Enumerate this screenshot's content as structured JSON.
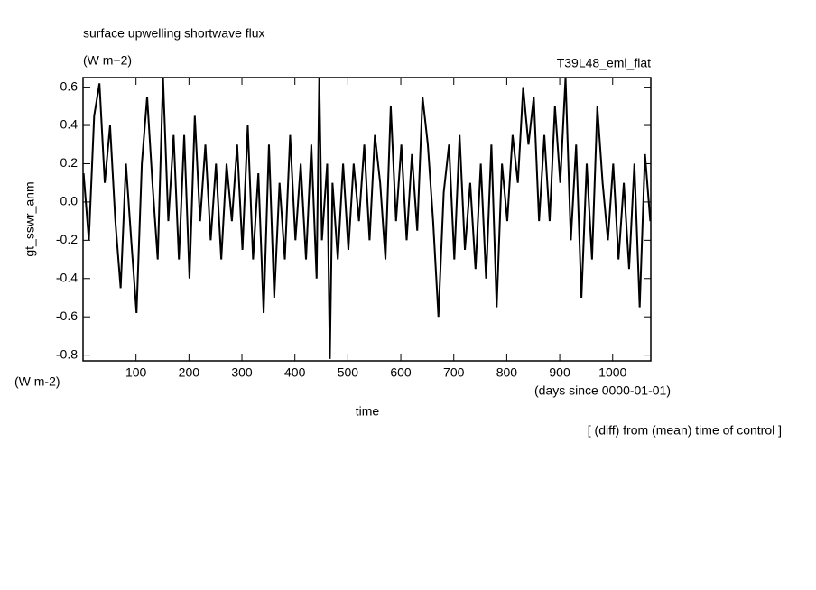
{
  "chart_data": {
    "type": "line",
    "title": "surface upwelling shortwave flux",
    "units": "(W m−2)",
    "run_label": "T39L48_eml_flat",
    "ylabel": "gt_sswr_anm",
    "y_units": "(W m-2)",
    "xlabel": "time",
    "x_units": "(days since 0000-01-01)",
    "note": "[ (diff) from (mean) time of control ]",
    "xlim": [
      0,
      1072
    ],
    "ylim": [
      -0.83,
      0.65
    ],
    "xticks": [
      100,
      200,
      300,
      400,
      500,
      600,
      700,
      800,
      900,
      1000
    ],
    "yticks": [
      0.6,
      0.4,
      0.2,
      {
        "value": 0,
        "label": "0.0"
      },
      -0.2,
      -0.4,
      -0.6,
      -0.8
    ],
    "series": [
      {
        "name": "gt_sswr_anm",
        "color": "#000000",
        "x": [
          1,
          11,
          21,
          31,
          41,
          51,
          61,
          71,
          81,
          91,
          101,
          111,
          121,
          131,
          141,
          151,
          161,
          171,
          181,
          191,
          201,
          211,
          221,
          231,
          241,
          251,
          261,
          271,
          281,
          291,
          301,
          311,
          321,
          331,
          341,
          351,
          361,
          371,
          381,
          391,
          401,
          411,
          421,
          431,
          441,
          446,
          451,
          461,
          466,
          471,
          481,
          491,
          501,
          511,
          521,
          531,
          541,
          551,
          561,
          571,
          581,
          591,
          601,
          611,
          621,
          631,
          641,
          651,
          661,
          671,
          681,
          691,
          701,
          711,
          721,
          731,
          741,
          751,
          761,
          771,
          781,
          791,
          801,
          811,
          821,
          831,
          841,
          851,
          861,
          871,
          881,
          891,
          901,
          911,
          921,
          931,
          941,
          951,
          961,
          971,
          981,
          991,
          1001,
          1011,
          1021,
          1031,
          1041,
          1051,
          1061,
          1071
        ],
        "values": [
          0.15,
          -0.2,
          0.45,
          0.62,
          0.1,
          0.4,
          -0.1,
          -0.45,
          0.2,
          -0.2,
          -0.58,
          0.2,
          0.55,
          0.1,
          -0.3,
          0.65,
          -0.1,
          0.35,
          -0.3,
          0.35,
          -0.4,
          0.45,
          -0.1,
          0.3,
          -0.2,
          0.2,
          -0.3,
          0.2,
          -0.1,
          0.3,
          -0.25,
          0.4,
          -0.3,
          0.15,
          -0.58,
          0.3,
          -0.5,
          0.1,
          -0.3,
          0.35,
          -0.2,
          0.2,
          -0.3,
          0.3,
          -0.4,
          0.65,
          -0.2,
          0.2,
          -0.82,
          0.1,
          -0.3,
          0.2,
          -0.25,
          0.2,
          -0.1,
          0.3,
          -0.2,
          0.35,
          0.1,
          -0.3,
          0.5,
          -0.1,
          0.3,
          -0.2,
          0.25,
          -0.15,
          0.55,
          0.3,
          -0.1,
          -0.6,
          0.05,
          0.3,
          -0.3,
          0.35,
          -0.25,
          0.1,
          -0.35,
          0.2,
          -0.4,
          0.3,
          -0.55,
          0.2,
          -0.1,
          0.35,
          0.1,
          0.6,
          0.3,
          0.55,
          -0.1,
          0.35,
          -0.1,
          0.5,
          0.1,
          0.65,
          -0.2,
          0.3,
          -0.5,
          0.2,
          -0.3,
          0.5,
          0.1,
          -0.2,
          0.2,
          -0.3,
          0.1,
          -0.35,
          0.2,
          -0.55,
          0.25,
          -0.1
        ]
      }
    ]
  }
}
